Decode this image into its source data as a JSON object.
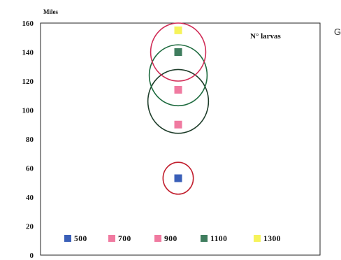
{
  "chart_data": {
    "type": "scatter",
    "title": "",
    "xlabel": "",
    "ylabel": "Miles",
    "ylim": [
      0,
      160
    ],
    "yticks": [
      0,
      20,
      40,
      60,
      80,
      100,
      120,
      140,
      160
    ],
    "grid": false,
    "annotation": "N° larvas",
    "edge_text": "G",
    "legend_position": "bottom-inside",
    "series": [
      {
        "name": "500",
        "color": "#3a5fb8",
        "values": [
          53
        ]
      },
      {
        "name": "700",
        "color": "#f07aa0",
        "values": [
          90
        ]
      },
      {
        "name": "900",
        "color": "#f07aa0",
        "values": [
          114
        ]
      },
      {
        "name": "1100",
        "color": "#3f7d5e",
        "values": [
          140
        ]
      },
      {
        "name": "1300",
        "color": "#f6f35a",
        "values": [
          155
        ]
      }
    ],
    "circles": [
      {
        "center": 53,
        "radius": 11,
        "color": "#c2202f"
      },
      {
        "center": 106,
        "radius": 22,
        "color": "#1e3d2a"
      },
      {
        "center": 124,
        "radius": 21,
        "color": "#1e6b3f"
      },
      {
        "center": 140,
        "radius": 20,
        "color": "#d02d57"
      }
    ]
  }
}
